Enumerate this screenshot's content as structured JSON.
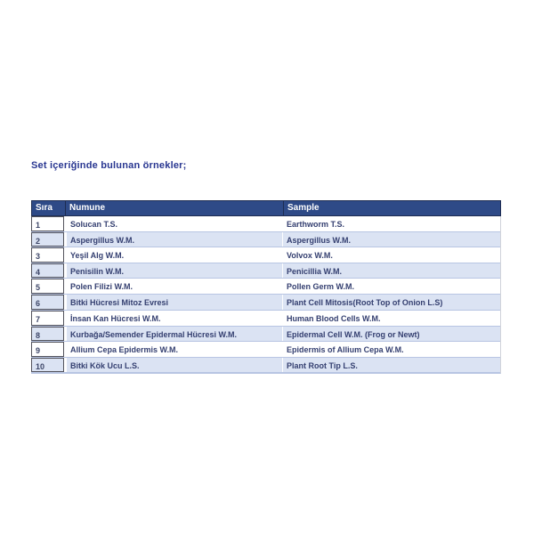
{
  "page": {
    "title": "Set içeriğinde bulunan örnekler;"
  },
  "table": {
    "columns": [
      "Sıra",
      "Numune",
      "Sample"
    ],
    "rows": [
      {
        "no": "1",
        "numune": "Solucan T.S.",
        "sample": "Earthworm T.S."
      },
      {
        "no": "2",
        "numune": "Aspergillus W.M.",
        "sample": "Aspergillus W.M."
      },
      {
        "no": "3",
        "numune": "Yeşil Alg W.M.",
        "sample": "Volvox W.M."
      },
      {
        "no": "4",
        "numune": "Penisilin W.M.",
        "sample": "Penicillia W.M."
      },
      {
        "no": "5",
        "numune": "Polen Filizi W.M.",
        "sample": "Pollen Germ W.M."
      },
      {
        "no": "6",
        "numune": "Bitki Hücresi Mitoz Evresi",
        "sample": "Plant Cell Mitosis(Root Top of Onion L.S)"
      },
      {
        "no": "7",
        "numune": "İnsan Kan Hücresi W.M.",
        "sample": "Human Blood Cells W.M."
      },
      {
        "no": "8",
        "numune": "Kurbağa/Semender Epidermal Hücresi W.M.",
        "sample": "Epidermal Cell W.M. (Frog or Newt)"
      },
      {
        "no": "9",
        "numune": "Allium Cepa Epidermis W.M.",
        "sample": "Epidermis of Allium Cepa W.M."
      },
      {
        "no": "10",
        "numune": "Bitki Kök Ucu L.S.",
        "sample": "Plant Root Tip L.S."
      }
    ]
  },
  "colors": {
    "header_bg": "#2e4a87",
    "header_border": "#1d2c52",
    "alt_row_bg": "#dbe3f3",
    "row_separator": "#b8c5e3",
    "body_text": "#343f70",
    "title_text": "#293791",
    "sira_cell_border": "#53535c"
  }
}
